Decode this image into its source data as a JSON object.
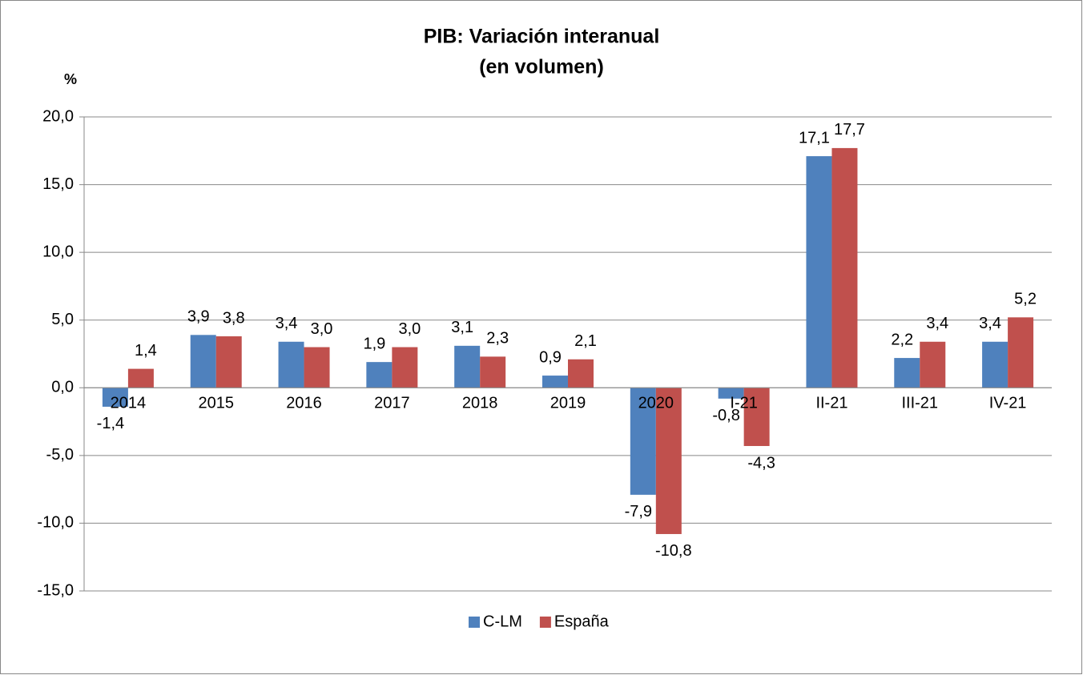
{
  "chart_data": {
    "type": "bar",
    "title": "PIB: Variación interanual",
    "subtitle": "(en volumen)",
    "y_label": "%",
    "categories": [
      "2014",
      "2015",
      "2016",
      "2017",
      "2018",
      "2019",
      "2020",
      "I-21",
      "II-21",
      "III-21",
      "IV-21"
    ],
    "series": [
      {
        "name": "C-LM",
        "color": "#4f81bd",
        "values": [
          -1.4,
          3.9,
          3.4,
          1.9,
          3.1,
          0.9,
          -7.9,
          -0.8,
          17.1,
          2.2,
          3.4
        ],
        "value_labels": [
          "-1,4",
          "3,9",
          "3,4",
          "1,9",
          "3,1",
          "0,9",
          "-7,9",
          "-0,8",
          "17,1",
          "2,2",
          "3,4"
        ]
      },
      {
        "name": "España",
        "color": "#c0504d",
        "values": [
          1.4,
          3.8,
          3.0,
          3.0,
          2.3,
          2.1,
          -10.8,
          -4.3,
          17.7,
          3.4,
          5.2
        ],
        "value_labels": [
          "1,4",
          "3,8",
          "3,0",
          "3,0",
          "2,3",
          "2,1",
          "-10,8",
          "-4,3",
          "17,7",
          "3,4",
          "5,2"
        ]
      }
    ],
    "ylim": [
      -15,
      20
    ],
    "yticks": [
      {
        "value": -15,
        "label": "-15,0"
      },
      {
        "value": -10,
        "label": "-10,0"
      },
      {
        "value": -5,
        "label": "-5,0"
      },
      {
        "value": 0,
        "label": "0,0"
      },
      {
        "value": 5,
        "label": "5,0"
      },
      {
        "value": 10,
        "label": "10,0"
      },
      {
        "value": 15,
        "label": "15,0"
      },
      {
        "value": 20,
        "label": "20,0"
      }
    ],
    "grid": true,
    "legend": "bottom"
  }
}
